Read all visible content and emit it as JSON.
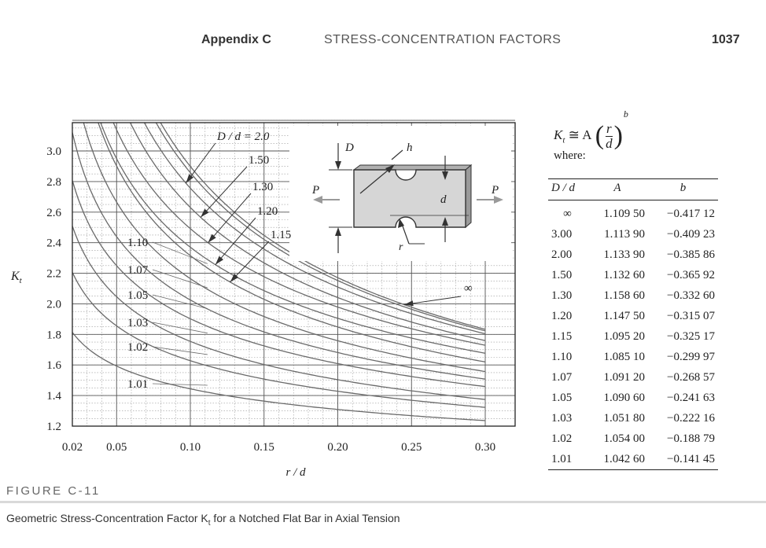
{
  "header": {
    "appendix": "Appendix C",
    "title": "STRESS-CONCENTRATION FACTORS",
    "page": "1037"
  },
  "equation": {
    "lhs": "K",
    "lhs_sub": "t",
    "rel": "≅ A",
    "frac_num": "r",
    "frac_den": "d",
    "exp": "b",
    "where": "where:"
  },
  "table": {
    "columns": [
      "D / d",
      "A",
      "b"
    ],
    "rows": [
      [
        "∞",
        "1.109 50",
        "−0.417 12"
      ],
      [
        "3.00",
        "1.113 90",
        "−0.409 23"
      ],
      [
        "2.00",
        "1.133 90",
        "−0.385 86"
      ],
      [
        "1.50",
        "1.132 60",
        "−0.365 92"
      ],
      [
        "1.30",
        "1.158 60",
        "−0.332 60"
      ],
      [
        "1.20",
        "1.147 50",
        "−0.315 07"
      ],
      [
        "1.15",
        "1.095 20",
        "−0.325 17"
      ],
      [
        "1.10",
        "1.085 10",
        "−0.299 97"
      ],
      [
        "1.07",
        "1.091 20",
        "−0.268 57"
      ],
      [
        "1.05",
        "1.090 60",
        "−0.241 63"
      ],
      [
        "1.03",
        "1.051 80",
        "−0.222 16"
      ],
      [
        "1.02",
        "1.054 00",
        "−0.188 79"
      ],
      [
        "1.01",
        "1.042 60",
        "−0.141 45"
      ]
    ]
  },
  "figure": {
    "label": "FIGURE C-11",
    "caption": "Geometric Stress-Concentration Factor K",
    "caption_sub": "t",
    "caption_tail": " for a Notched Flat Bar in Axial Tension"
  },
  "colors": {
    "curve": "#6a6a6a",
    "grid": "#555555",
    "part": "#d6d6d6",
    "arrow": "#333333"
  },
  "chart_data": {
    "type": "line",
    "title": "",
    "xlabel": "r / d",
    "ylabel": "K_t",
    "xlim": [
      0.02,
      0.3
    ],
    "ylim": [
      1.2,
      3.0
    ],
    "xticks": [
      0.02,
      0.05,
      0.1,
      0.15,
      0.2,
      0.25,
      0.3
    ],
    "xtick_labels": [
      "0.02",
      "0.05",
      "0.10",
      "0.15",
      "0.20",
      "0.25",
      "0.30"
    ],
    "yticks": [
      1.2,
      1.4,
      1.6,
      1.8,
      2.0,
      2.2,
      2.4,
      2.6,
      2.8,
      3.0
    ],
    "ytick_labels": [
      "1.2",
      "1.4",
      "1.6",
      "1.8",
      "2.0",
      "2.2",
      "2.4",
      "2.6",
      "2.8",
      "3.0"
    ],
    "grid": true,
    "formula": "Kt = A (r/d)^b",
    "series": [
      {
        "name": "∞",
        "A": 1.1095,
        "b": -0.41712
      },
      {
        "name": "3.00",
        "A": 1.1139,
        "b": -0.40923
      },
      {
        "name": "2.0",
        "A": 1.1339,
        "b": -0.38586
      },
      {
        "name": "1.50",
        "A": 1.1326,
        "b": -0.36592
      },
      {
        "name": "1.30",
        "A": 1.1586,
        "b": -0.3326
      },
      {
        "name": "1.20",
        "A": 1.1475,
        "b": -0.31507
      },
      {
        "name": "1.15",
        "A": 1.0952,
        "b": -0.32517
      },
      {
        "name": "1.10",
        "A": 1.0851,
        "b": -0.29997
      },
      {
        "name": "1.07",
        "A": 1.0912,
        "b": -0.26857
      },
      {
        "name": "1.05",
        "A": 1.0906,
        "b": -0.24163
      },
      {
        "name": "1.03",
        "A": 1.0518,
        "b": -0.22216
      },
      {
        "name": "1.02",
        "A": 1.054,
        "b": -0.18879
      },
      {
        "name": "1.01",
        "A": 1.0426,
        "b": -0.14145
      }
    ],
    "curve_labels": [
      {
        "text": "D / d = 2.0",
        "series": "2.0"
      },
      {
        "text": "1.50",
        "series": "1.50"
      },
      {
        "text": "1.30",
        "series": "1.30"
      },
      {
        "text": "1.20",
        "series": "1.20"
      },
      {
        "text": "1.15",
        "series": "1.15"
      },
      {
        "text": "1.10",
        "series": "1.10"
      },
      {
        "text": "1.07",
        "series": "1.07"
      },
      {
        "text": "1.05",
        "series": "1.05"
      },
      {
        "text": "1.03",
        "series": "1.03"
      },
      {
        "text": "1.02",
        "series": "1.02"
      },
      {
        "text": "1.01",
        "series": "1.01"
      },
      {
        "text": "∞",
        "series": "∞"
      }
    ],
    "inset_labels": {
      "D": "D",
      "h": "h",
      "d": "d",
      "r": "r",
      "P_left": "P",
      "P_right": "P"
    }
  }
}
